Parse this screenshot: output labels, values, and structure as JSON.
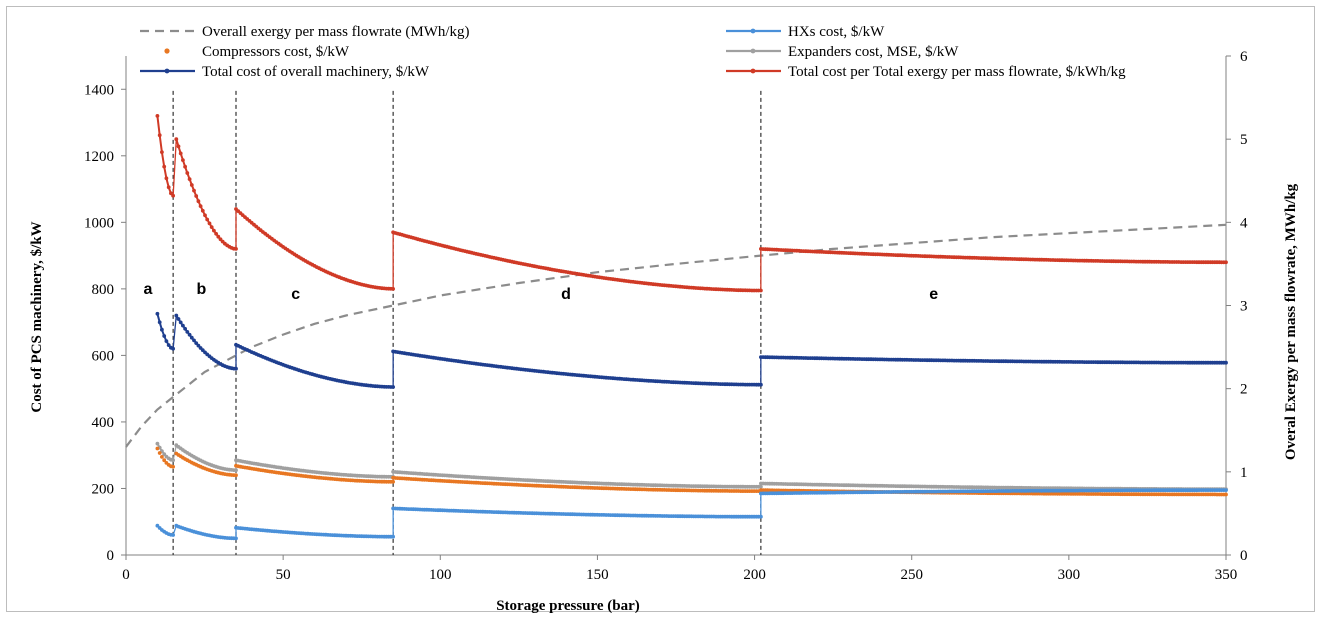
{
  "chart_data": {
    "type": "line",
    "title": "",
    "xlabel": "Storage pressure (bar)",
    "ylabel_left": "Cost of PCS machinery, $/kW",
    "ylabel_right": "Overal Exergy per mass flowrate, MWh/kg",
    "xlim": [
      0,
      350
    ],
    "ylim_left": [
      0,
      1500
    ],
    "ylim_right": [
      0,
      6
    ],
    "x_ticks": [
      0,
      50,
      100,
      150,
      200,
      250,
      300,
      350
    ],
    "y_left_ticks": [
      0,
      200,
      400,
      600,
      800,
      1000,
      1200,
      1400
    ],
    "y_right_ticks": [
      0,
      1,
      2,
      3,
      4,
      5,
      6
    ],
    "grid": false,
    "legend_placement": "top",
    "regions": {
      "boundaries": [
        15,
        35,
        85,
        202
      ],
      "labels": [
        {
          "text": "a",
          "x": 7,
          "y": 785
        },
        {
          "text": "b",
          "x": 24,
          "y": 785
        },
        {
          "text": "c",
          "x": 54,
          "y": 770
        },
        {
          "text": "d",
          "x": 140,
          "y": 770
        },
        {
          "text": "e",
          "x": 257,
          "y": 770
        }
      ]
    },
    "segment_curves": {
      "x_ranges": [
        [
          10,
          15
        ],
        [
          16,
          35
        ],
        [
          35,
          85
        ],
        [
          85,
          202
        ],
        [
          202,
          350
        ]
      ],
      "total_cost_per_exergy": [
        [
          1320,
          1080
        ],
        [
          1250,
          920
        ],
        [
          1040,
          800
        ],
        [
          970,
          795
        ],
        [
          920,
          880
        ]
      ],
      "total_cost_machinery": [
        [
          725,
          620
        ],
        [
          720,
          560
        ],
        [
          632,
          505
        ],
        [
          612,
          512
        ],
        [
          595,
          578
        ]
      ],
      "expanders_cost": [
        [
          335,
          285
        ],
        [
          330,
          255
        ],
        [
          285,
          235
        ],
        [
          250,
          205
        ],
        [
          215,
          198
        ]
      ],
      "compressors_cost": [
        [
          320,
          265
        ],
        [
          305,
          240
        ],
        [
          268,
          220
        ],
        [
          232,
          192
        ],
        [
          195,
          182
        ]
      ],
      "hxs_cost": [
        [
          88,
          60
        ],
        [
          88,
          50
        ],
        [
          82,
          55
        ],
        [
          140,
          115
        ],
        [
          185,
          195
        ]
      ]
    },
    "series": [
      {
        "name": "Overall exergy per mass flowrate (MWh/kg)",
        "axis": "right",
        "style": "dashed",
        "color": "#8c8c8c",
        "x": [
          0,
          5,
          10,
          15,
          20,
          25,
          30,
          35,
          40,
          50,
          60,
          70,
          85,
          100,
          125,
          150,
          175,
          202,
          225,
          250,
          275,
          300,
          325,
          350
        ],
        "values": [
          1.3,
          1.55,
          1.75,
          1.9,
          2.05,
          2.2,
          2.3,
          2.4,
          2.5,
          2.65,
          2.78,
          2.88,
          3.0,
          3.12,
          3.27,
          3.4,
          3.5,
          3.6,
          3.68,
          3.75,
          3.82,
          3.87,
          3.92,
          3.97
        ]
      },
      {
        "name": "Compressors cost, $/kW",
        "axis": "left",
        "style": "markers",
        "color": "#e87722"
      },
      {
        "name": "Total cost of overall machinery, $/kW",
        "axis": "left",
        "style": "line-markers",
        "color": "#1f3f8f"
      },
      {
        "name": "HXs cost, $/kW",
        "axis": "left",
        "style": "line-markers",
        "color": "#4a90d9"
      },
      {
        "name": "Expanders cost, MSE, $/kW",
        "axis": "left",
        "style": "line-markers",
        "color": "#a0a0a0"
      },
      {
        "name": "Total cost per Total exergy per mass flowrate, $/kWh/kg",
        "axis": "left",
        "style": "line-markers",
        "color": "#d03a26"
      }
    ]
  }
}
